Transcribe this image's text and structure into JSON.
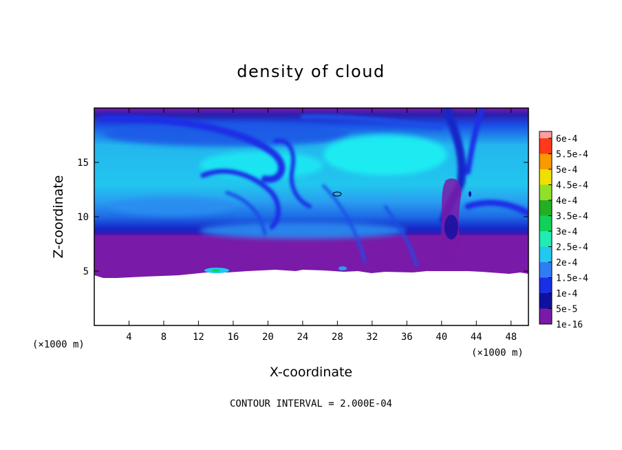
{
  "chart_data": {
    "type": "heatmap",
    "title": "density of cloud",
    "xlabel": "X-coordinate",
    "ylabel": "Z-coordinate",
    "x_unit_left": "(×1000 m)",
    "x_unit_right": "(×1000 m)",
    "footer": "CONTOUR INTERVAL = 2.000E-04",
    "xlim": [
      0,
      50
    ],
    "ylim": [
      0,
      20
    ],
    "x_ticks": [
      4,
      8,
      12,
      16,
      20,
      24,
      28,
      32,
      36,
      40,
      44,
      48
    ],
    "y_ticks": [
      5,
      10,
      15
    ],
    "colorbar": {
      "levels": [
        "1e-16",
        "5e-5",
        "1e-4",
        "1.5e-4",
        "2e-4",
        "2.5e-4",
        "3e-4",
        "3.5e-4",
        "4e-4",
        "4.5e-4",
        "5e-4",
        "5.5e-4",
        "6e-4"
      ],
      "colors": [
        "#7a1aa8",
        "#1010a0",
        "#1a2ee6",
        "#2f7df5",
        "#21c8f0",
        "#21ecb4",
        "#10d25a",
        "#22b022",
        "#90e02a",
        "#f0e000",
        "#f89a00",
        "#ff3a1a",
        "#f04060",
        "#ff9e9e"
      ]
    }
  }
}
